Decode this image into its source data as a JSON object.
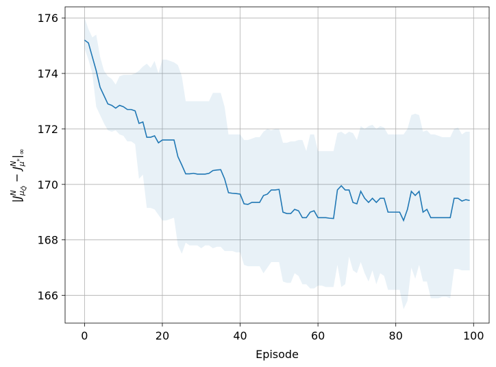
{
  "chart_data": {
    "type": "line",
    "xlabel": "Episode",
    "xlim": [
      -5,
      104
    ],
    "ylim": [
      165.0,
      176.4
    ],
    "grid": true,
    "line_color": "#1f77b4",
    "band_color": "#1f77b4",
    "xticks": [
      0,
      20,
      40,
      60,
      80,
      100
    ],
    "xtick_labels": [
      "0",
      "20",
      "40",
      "60",
      "80",
      "100"
    ],
    "yticks": [
      166,
      168,
      170,
      172,
      174,
      176
    ],
    "ytick_labels": [
      "166",
      "168",
      "170",
      "172",
      "174",
      "176"
    ],
    "series": [
      {
        "x": [
          0,
          1,
          2,
          3,
          4,
          5,
          6,
          7,
          8,
          9,
          10,
          11,
          12,
          13,
          14,
          15,
          16,
          17,
          18,
          19,
          20,
          21,
          22,
          23,
          24,
          25,
          26,
          27,
          28,
          29,
          30,
          31,
          32,
          33,
          34,
          35,
          36,
          37,
          38,
          39,
          40,
          41,
          42,
          43,
          44,
          45,
          46,
          47,
          48,
          49,
          50,
          51,
          52,
          53,
          54,
          55,
          56,
          57,
          58,
          59,
          60,
          61,
          62,
          63,
          64,
          65,
          66,
          67,
          68,
          69,
          70,
          71,
          72,
          73,
          74,
          75,
          76,
          77,
          78,
          79,
          80,
          81,
          82,
          83,
          84,
          85,
          86,
          87,
          88,
          89,
          90,
          91,
          92,
          93,
          94,
          95,
          96,
          97,
          98,
          99
        ],
        "mean": [
          175.2,
          175.1,
          174.6,
          174.1,
          173.5,
          173.2,
          172.9,
          172.85,
          172.75,
          172.85,
          172.8,
          172.7,
          172.7,
          172.65,
          172.2,
          172.25,
          171.7,
          171.7,
          171.75,
          171.5,
          171.6,
          171.6,
          171.6,
          171.6,
          171.0,
          170.7,
          170.38,
          170.38,
          170.4,
          170.37,
          170.37,
          170.37,
          170.4,
          170.5,
          170.52,
          170.53,
          170.2,
          169.7,
          169.68,
          169.67,
          169.65,
          169.3,
          169.28,
          169.35,
          169.35,
          169.35,
          169.6,
          169.65,
          169.8,
          169.8,
          169.82,
          169.0,
          168.95,
          168.95,
          169.1,
          169.05,
          168.8,
          168.8,
          169.0,
          169.05,
          168.8,
          168.8,
          168.8,
          168.78,
          168.77,
          169.8,
          169.95,
          169.8,
          169.8,
          169.35,
          169.3,
          169.75,
          169.5,
          169.35,
          169.5,
          169.35,
          169.5,
          169.5,
          169.0,
          169.0,
          169.0,
          169.0,
          168.7,
          169.1,
          169.75,
          169.6,
          169.75,
          169.0,
          169.1,
          168.8,
          168.8,
          168.8,
          168.8,
          168.8,
          168.8,
          169.5,
          169.5,
          169.4,
          169.45,
          169.42
        ],
        "upper": [
          176.0,
          175.6,
          175.3,
          175.4,
          174.6,
          174.1,
          173.9,
          173.8,
          173.6,
          173.9,
          173.95,
          173.95,
          173.95,
          174.0,
          174.1,
          174.25,
          174.35,
          174.2,
          174.45,
          174.0,
          174.5,
          174.5,
          174.45,
          174.4,
          174.3,
          173.9,
          173.0,
          173.0,
          173.0,
          173.0,
          173.0,
          173.0,
          173.0,
          173.3,
          173.3,
          173.3,
          172.8,
          171.8,
          171.8,
          171.8,
          171.8,
          171.6,
          171.6,
          171.65,
          171.7,
          171.7,
          171.9,
          172.0,
          171.95,
          172.0,
          172.0,
          171.5,
          171.5,
          171.55,
          171.55,
          171.6,
          171.6,
          171.2,
          171.8,
          171.8,
          171.2,
          171.2,
          171.2,
          171.2,
          171.2,
          171.85,
          171.9,
          171.8,
          171.9,
          171.85,
          171.6,
          172.1,
          172.0,
          172.1,
          172.15,
          172.0,
          172.1,
          172.05,
          171.8,
          171.8,
          171.8,
          171.8,
          171.8,
          172.0,
          172.5,
          172.55,
          172.5,
          171.9,
          171.95,
          171.8,
          171.8,
          171.75,
          171.7,
          171.7,
          171.7,
          172.0,
          172.05,
          171.8,
          171.9,
          171.9
        ],
        "lower": [
          174.9,
          174.5,
          174.0,
          172.8,
          172.5,
          172.2,
          171.95,
          171.9,
          171.95,
          171.8,
          171.75,
          171.55,
          171.55,
          171.45,
          170.2,
          170.35,
          169.15,
          169.15,
          169.1,
          168.9,
          168.7,
          168.7,
          168.75,
          168.8,
          167.8,
          167.5,
          167.9,
          167.8,
          167.8,
          167.8,
          167.7,
          167.8,
          167.8,
          167.7,
          167.75,
          167.75,
          167.6,
          167.6,
          167.6,
          167.55,
          167.55,
          167.1,
          167.05,
          167.05,
          167.05,
          167.05,
          166.8,
          167.0,
          167.2,
          167.2,
          167.2,
          166.5,
          166.45,
          166.45,
          166.8,
          166.7,
          166.4,
          166.4,
          166.25,
          166.25,
          166.35,
          166.35,
          166.3,
          166.3,
          166.3,
          167.1,
          166.3,
          166.4,
          167.4,
          166.9,
          166.8,
          167.2,
          166.8,
          166.5,
          166.9,
          166.4,
          166.8,
          166.7,
          166.2,
          166.2,
          166.2,
          166.2,
          165.5,
          165.8,
          167.0,
          166.6,
          167.1,
          166.5,
          166.5,
          165.9,
          165.9,
          165.9,
          165.95,
          165.95,
          165.9,
          166.95,
          166.95,
          166.9,
          166.9,
          166.9
        ]
      }
    ]
  }
}
